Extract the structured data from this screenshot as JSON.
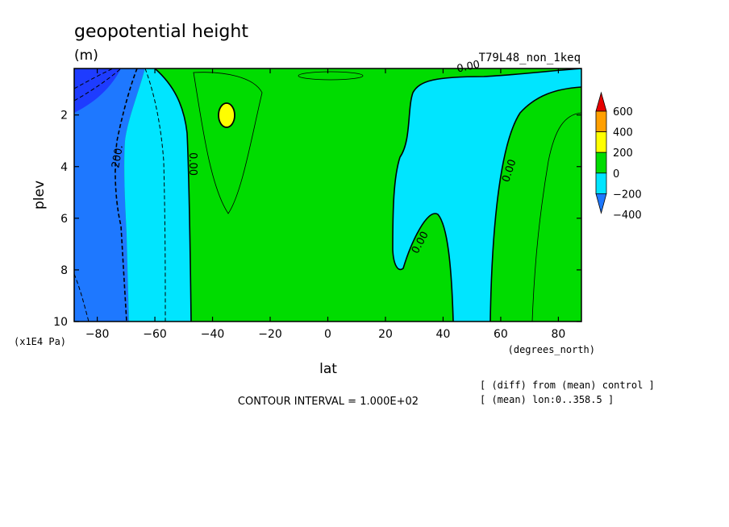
{
  "chart_data": {
    "type": "contour",
    "title": "geopotential height",
    "units": "(m)",
    "experiment": "T79L48_non_1keq",
    "xlabel": "lat",
    "x_units": "(degrees_north)",
    "ylabel": "plev",
    "y_units": "(x1E4 Pa)",
    "xlim": [
      -88,
      88
    ],
    "ylim": [
      0.2,
      10
    ],
    "y_reversed": true,
    "x_ticks": [
      -80,
      -60,
      -40,
      -20,
      0,
      20,
      40,
      60,
      80
    ],
    "y_ticks": [
      2,
      4,
      6,
      8,
      10
    ],
    "contour_interval_text": "CONTOUR INTERVAL = 1.000E+02",
    "notes": [
      "[ (diff) from (mean) control ]",
      "[ (mean) lon:0..358.5 ]"
    ],
    "contour_labels": [
      {
        "text": "0.00",
        "x": 49,
        "y": 0.25,
        "rotate": -12
      },
      {
        "text": "-200.",
        "x": -72,
        "y": 3.7,
        "rotate": -80
      },
      {
        "text": "0.00",
        "x": -48,
        "y": 3.9,
        "rotate": 90
      },
      {
        "text": "0.00",
        "x": 33,
        "y": 7.0,
        "rotate": -62
      },
      {
        "text": "0.00",
        "x": 64,
        "y": 4.2,
        "rotate": -72
      }
    ],
    "colorbar": {
      "levels": [
        -400,
        -200,
        0,
        200,
        400,
        600
      ],
      "level_labels": [
        "600",
        "400",
        "200",
        "0",
        "-200",
        "-400"
      ],
      "colors": [
        "#1e78ff",
        "#00e5ff",
        "#00dc00",
        "#ffff00",
        "#ff9f00",
        "#e60000"
      ],
      "extra_color": "#1e3cff"
    }
  }
}
